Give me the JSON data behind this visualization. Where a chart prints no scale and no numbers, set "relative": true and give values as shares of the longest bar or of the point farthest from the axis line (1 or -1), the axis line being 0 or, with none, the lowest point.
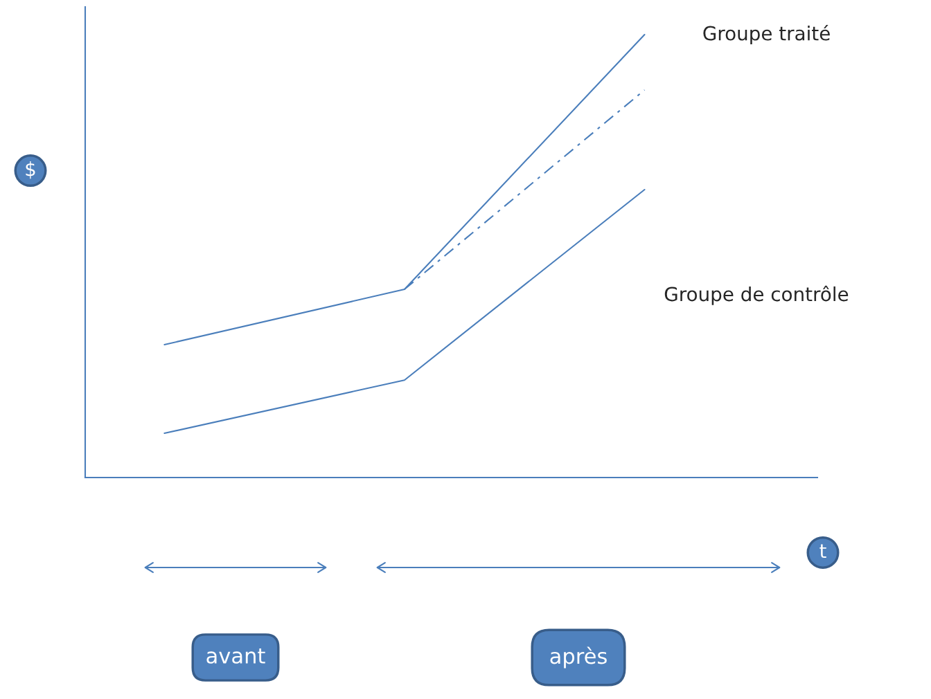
{
  "chart_data": {
    "type": "line",
    "relative": true,
    "xlabel": "t",
    "ylabel": "$",
    "legend": false,
    "grid": false,
    "categories": [
      null,
      null,
      null
    ],
    "series": [
      {
        "name": "Groupe traité",
        "color": "#4a7ebb",
        "values": [
          0.3,
          0.425,
          1.0
        ]
      },
      {
        "color": "#4a7ebb",
        "line_style": "dashed",
        "values": [
          null,
          0.425,
          0.875
        ]
      },
      {
        "name": "Groupe de contrôle",
        "color": "#4a7ebb",
        "values": [
          0.1,
          0.22,
          0.65
        ]
      }
    ],
    "annotations": [
      "avant",
      "après"
    ]
  }
}
